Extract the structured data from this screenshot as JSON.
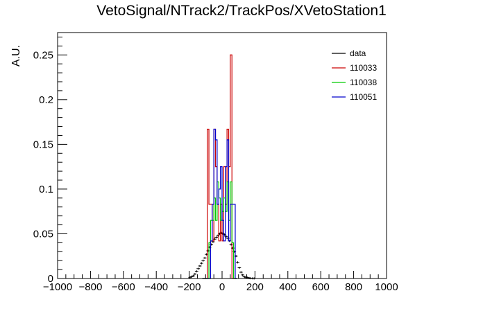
{
  "chart_data": {
    "type": "histogram",
    "title": "VetoSignal/NTrack2/TrackPos/XVetoStation1",
    "xlabel": "",
    "ylabel": "A.U.",
    "xlim": [
      -1000,
      1000
    ],
    "ylim": [
      0,
      0.275
    ],
    "bin_width": 10,
    "x_ticks": [
      -1000,
      -800,
      -600,
      -400,
      -200,
      0,
      200,
      400,
      600,
      800,
      1000
    ],
    "x_tick_labels": [
      "−1000",
      "−800",
      "−600",
      "−400",
      "−200",
      "0",
      "200",
      "400",
      "600",
      "800",
      "1000"
    ],
    "y_ticks": [
      0,
      0.05,
      0.1,
      0.15,
      0.2,
      0.25
    ],
    "y_tick_labels": [
      "0",
      "0.05",
      "0.1",
      "0.15",
      "0.2",
      "0.25"
    ],
    "legend_position": "top-right",
    "grid": false,
    "series": [
      {
        "name": "data",
        "style": "points",
        "color": "#000000",
        "x": [
          -195,
          -185,
          -175,
          -165,
          -155,
          -145,
          -135,
          -125,
          -115,
          -105,
          -95,
          -85,
          -75,
          -65,
          -55,
          -45,
          -35,
          -25,
          -15,
          -5,
          5,
          15,
          25,
          35,
          45,
          55,
          65,
          75,
          85,
          95,
          105,
          115,
          125,
          135,
          145,
          155,
          165,
          175,
          185,
          195
        ],
        "values": [
          0.001,
          0.002,
          0.003,
          0.005,
          0.008,
          0.011,
          0.014,
          0.017,
          0.02,
          0.023,
          0.027,
          0.031,
          0.035,
          0.038,
          0.041,
          0.044,
          0.046,
          0.048,
          0.05,
          0.051,
          0.05,
          0.049,
          0.047,
          0.045,
          0.042,
          0.038,
          0.034,
          0.03,
          0.025,
          0.018,
          0.012,
          0.007,
          0.004,
          0.002,
          0.001,
          0.001,
          0.0005,
          0.0003,
          0.0002,
          0.0001
        ]
      },
      {
        "name": "110033",
        "style": "step",
        "color": "#cc0000",
        "x_start": -120,
        "values": [
          0,
          0,
          0,
          0.167,
          0.083,
          0.083,
          0.042,
          0.167,
          0.125,
          0.083,
          0.042,
          0.083,
          0.042,
          0.125,
          0.083,
          0.167,
          0.125,
          0.25,
          0,
          0,
          0
        ]
      },
      {
        "name": "110038",
        "style": "step",
        "color": "#00cc00",
        "x_start": -120,
        "values": [
          0,
          0,
          0,
          0,
          0.04,
          0.065,
          0.065,
          0.09,
          0.065,
          0.108,
          0.09,
          0.065,
          0.075,
          0.09,
          0.075,
          0.108,
          0.065,
          0.108,
          0.04,
          0,
          0
        ]
      },
      {
        "name": "110051",
        "style": "step",
        "color": "#0000cc",
        "x_start": -120,
        "values": [
          0,
          0,
          0,
          0,
          0,
          0.042,
          0.083,
          0.167,
          0.155,
          0.083,
          0.1,
          0.125,
          0.065,
          0.042,
          0.125,
          0.155,
          0.042,
          0.083,
          0.083,
          0.083,
          0
        ]
      }
    ]
  }
}
